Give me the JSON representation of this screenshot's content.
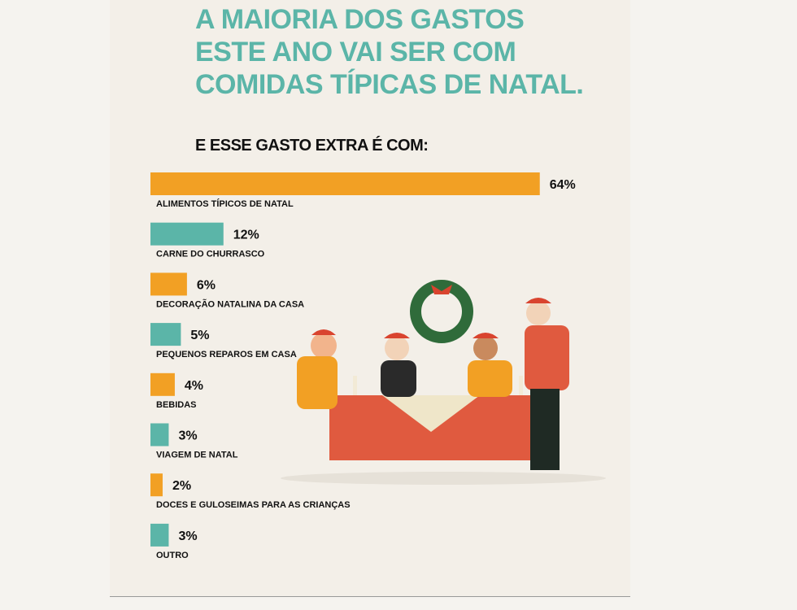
{
  "chart_data": {
    "type": "bar",
    "orientation": "horizontal",
    "title": "A MAIORIA DOS GASTOS ESTE ANO VAI SER COM COMIDAS TÍPICAS DE NATAL.",
    "subtitle": "E ESSE GASTO EXTRA É COM:",
    "categories": [
      "ALIMENTOS TÍPICOS DE NATAL",
      "CARNE DO CHURRASCO",
      "DECORAÇÃO NATALINA DA CASA",
      "PEQUENOS REPAROS EM CASA",
      "BEBIDAS",
      "VIAGEM DE NATAL",
      "DOCES E GULOSEIMAS PARA AS CRIANÇAS",
      "OUTRO"
    ],
    "values": [
      64,
      12,
      6,
      5,
      4,
      3,
      2,
      3
    ],
    "value_labels": [
      "64%",
      "12%",
      "6%",
      "5%",
      "4%",
      "3%",
      "2%",
      "3%"
    ],
    "colors": [
      "#f2a024",
      "#5bb5a8",
      "#f2a024",
      "#5bb5a8",
      "#f2a024",
      "#5bb5a8",
      "#f2a024",
      "#5bb5a8"
    ]
  }
}
